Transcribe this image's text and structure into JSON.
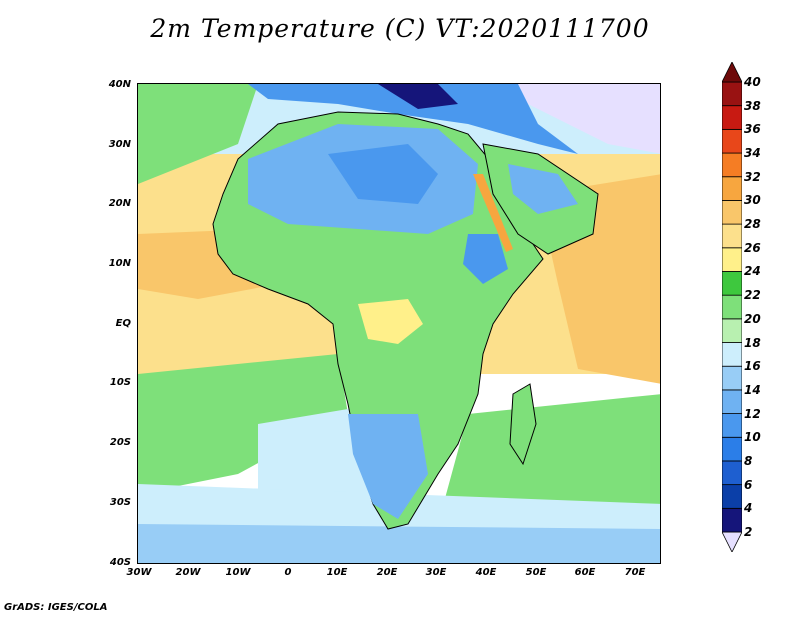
{
  "title": "2m Temperature (C) VT:2020111700",
  "credit": "GrADS: IGES/COLA",
  "lat_labels": [
    "40N",
    "30N",
    "20N",
    "10N",
    "EQ",
    "10S",
    "20S",
    "30S",
    "40S"
  ],
  "lon_labels": [
    "30W",
    "20W",
    "10W",
    "0",
    "10E",
    "20E",
    "30E",
    "40E",
    "50E",
    "60E",
    "70E"
  ],
  "colorbar": {
    "levels": [
      "2",
      "4",
      "6",
      "8",
      "10",
      "12",
      "14",
      "16",
      "18",
      "20",
      "22",
      "24",
      "26",
      "28",
      "30",
      "32",
      "34",
      "36",
      "38",
      "40"
    ],
    "colors": [
      "#e6e0ff",
      "#15157a",
      "#0b3fa8",
      "#1e5fd0",
      "#2b7ee8",
      "#4a98ee",
      "#6fb2f2",
      "#98cdf6",
      "#cdeefc",
      "#b8f0b0",
      "#7ee07a",
      "#3ec83e",
      "#fff08a",
      "#fce08c",
      "#f9c66a",
      "#f7a63f",
      "#f57d24",
      "#e8471a",
      "#c81a12",
      "#991212",
      "#6e0a0a"
    ]
  },
  "map_colors": {
    "ocean_cold": "#98cdf6",
    "ocean_cool": "#cdeefc",
    "ocean_mid": "#7ee07a",
    "ocean_warm": "#fce08c",
    "ocean_hot": "#f9c66a",
    "land_green": "#7ee07a",
    "land_blue": "#6fb2f2",
    "land_deep_blue": "#2b7ee8",
    "land_yellow": "#fff08a",
    "cold_north": "#e6e0ff"
  }
}
